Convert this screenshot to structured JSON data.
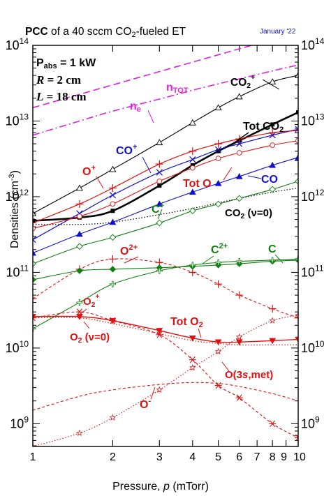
{
  "chart_data": {
    "type": "line",
    "title": "PCC of a 40 sccm CO2-fueled ET",
    "title_bold": "PCC",
    "title_rest": " of a 40 sccm CO",
    "title_sub": "2",
    "title_end": "-fueled ET",
    "date_note": "January '22",
    "xlabel": "Pressure, p (mTorr)",
    "xlabel_pre": "Pressure, ",
    "xlabel_var": "p",
    "xlabel_post": " (mTorr)",
    "ylabel": "Densities (cm-3)",
    "ylabel_main": "Densities (cm",
    "ylabel_sup": "-3",
    "ylabel_end": ")",
    "x_scale": "log",
    "y_scale": "log",
    "xlim": [
      1,
      10
    ],
    "ylim": [
      500000000.0,
      100000000000000.0
    ],
    "x_ticks": [
      1,
      2,
      3,
      4,
      5,
      6,
      7,
      8,
      9,
      10
    ],
    "x_tick_labels": [
      "1",
      "2",
      "3",
      "4",
      "5",
      "6",
      "7",
      "8",
      "9",
      "10"
    ],
    "y_ticks": [
      1000000000.0,
      10000000000.0,
      100000000000.0,
      1000000000000.0,
      10000000000000.0,
      100000000000000.0
    ],
    "y_tick_base": [
      "10",
      "10",
      "10",
      "10",
      "10",
      "10"
    ],
    "y_tick_exp": [
      "9",
      "10",
      "11",
      "12",
      "13",
      "14"
    ],
    "conditions": {
      "pabs_label": "P",
      "pabs_sub": "abs",
      "pabs_value": " = 1 kW",
      "r_label": "R",
      "r_value": " = 2 cm",
      "l_label": "L",
      "l_value": " = 18 cm"
    },
    "colors": {
      "black": "#000000",
      "magenta": "#e020e0",
      "blue": "#1010d0",
      "red": "#e01010",
      "green": "#108010"
    },
    "annotations": [
      {
        "id": "co2plus",
        "text": "CO",
        "sub": "2",
        "sup": "+",
        "color": "#000000"
      },
      {
        "id": "ntot",
        "text": "n",
        "sub": "TOT",
        "color": "#e020e0"
      },
      {
        "id": "ne",
        "text": "n",
        "sub": "e",
        "color": "#e020e0"
      },
      {
        "id": "totco2",
        "text": "Tot CO",
        "sub": "2",
        "color": "#000000"
      },
      {
        "id": "coplus",
        "text": "CO",
        "sup": "+",
        "color": "#1010d0"
      },
      {
        "id": "oplus",
        "text": "O",
        "sup": "+",
        "color": "#e01010"
      },
      {
        "id": "toto",
        "text": "Tot O",
        "color": "#e01010"
      },
      {
        "id": "co",
        "text": "CO",
        "color": "#1010d0"
      },
      {
        "id": "cplus",
        "text": "C",
        "sup": "+",
        "color": "#108010"
      },
      {
        "id": "co2v0",
        "text": "CO",
        "sub": "2",
        "post": " (ν=0)",
        "color": "#000000"
      },
      {
        "id": "o2plusplus",
        "text": "O",
        "sup": "2+",
        "color": "#e01010"
      },
      {
        "id": "c2plus",
        "text": "C",
        "sup": "2+",
        "color": "#108010"
      },
      {
        "id": "c",
        "text": "C",
        "color": "#108010"
      },
      {
        "id": "o2plus",
        "text": "O",
        "sub": "2",
        "sup": "+",
        "color": "#e01010"
      },
      {
        "id": "toto2",
        "text": "Tot O",
        "sub": "2",
        "color": "#e01010"
      },
      {
        "id": "o2v0",
        "text": "O",
        "sub": "2",
        "post": " (ν=0)",
        "color": "#e01010"
      },
      {
        "id": "o3smet",
        "text": "O(3",
        "ital": "s",
        "post": ",met)",
        "color": "#e01010"
      },
      {
        "id": "ominus",
        "text": "O",
        "sup": "-",
        "color": "#e01010"
      }
    ],
    "series": [
      {
        "name": "nTOT",
        "color": "#e020e0",
        "dash": "10,5",
        "marker": "none",
        "width": 1.6,
        "x": [
          1,
          2,
          3,
          4,
          5,
          6,
          8,
          10
        ],
        "y": [
          15000000000000.0,
          30000000000000.0,
          45000000000000.0,
          60000000000000.0,
          75000000000000.0,
          90000000000000.0,
          120000000000000.0,
          150000000000000.0
        ]
      },
      {
        "name": "ne",
        "color": "#e020e0",
        "dash": "10,4,2,4",
        "marker": "none",
        "width": 1.6,
        "x": [
          1,
          1.5,
          2,
          3,
          4,
          5,
          6,
          8,
          10
        ],
        "y": [
          6500000000000.0,
          10000000000000.0,
          13500000000000.0,
          19500000000000.0,
          25500000000000.0,
          31000000000000.0,
          36000000000000.0,
          46000000000000.0,
          55000000000000.0
        ]
      },
      {
        "name": "CO2+",
        "color": "#000000",
        "dash": "",
        "marker": "triangle-open",
        "width": 1.1,
        "x": [
          1,
          1.5,
          2,
          3,
          4,
          5,
          6,
          8,
          10
        ],
        "y": [
          600000000000.0,
          1300000000000.0,
          2300000000000.0,
          5200000000000.0,
          9500000000000.0,
          15000000000000.0,
          21000000000000.0,
          33000000000000.0,
          40000000000000.0
        ]
      },
      {
        "name": "Tot CO2",
        "color": "#000000",
        "dash": "",
        "marker": "square",
        "width": 2.6,
        "x": [
          1,
          1.5,
          2,
          3,
          4,
          5,
          6,
          8,
          10
        ],
        "y": [
          480000000000.0,
          530000000000.0,
          650000000000.0,
          1400000000000.0,
          2600000000000.0,
          4000000000000.0,
          5500000000000.0,
          9000000000000.0,
          13000000000000.0
        ]
      },
      {
        "name": "CO+",
        "color": "#1010d0",
        "dash": "",
        "marker": "x",
        "width": 1.2,
        "x": [
          1,
          1.5,
          2,
          3,
          4,
          5,
          6,
          8,
          10
        ],
        "y": [
          270000000000.0,
          600000000000.0,
          1050000000000.0,
          2100000000000.0,
          3100000000000.0,
          4200000000000.0,
          5000000000000.0,
          6500000000000.0,
          7800000000000.0
        ]
      },
      {
        "name": "O+",
        "color": "#e01010",
        "dash": "",
        "marker": "plus",
        "width": 1.2,
        "x": [
          1,
          1.5,
          2,
          3,
          4,
          5,
          6,
          8,
          10
        ],
        "y": [
          450000000000.0,
          800000000000.0,
          1300000000000.0,
          2700000000000.0,
          4000000000000.0,
          5000000000000.0,
          5800000000000.0,
          7000000000000.0,
          7500000000000.0
        ]
      },
      {
        "name": "Tot O",
        "color": "#e01010",
        "dash": "",
        "marker": "circle-open",
        "width": 1.1,
        "x": [
          1,
          1.5,
          2,
          3,
          4,
          5,
          6,
          8,
          10
        ],
        "y": [
          380000000000.0,
          550000000000.0,
          800000000000.0,
          1600000000000.0,
          2400000000000.0,
          3200000000000.0,
          3800000000000.0,
          4800000000000.0,
          5500000000000.0
        ]
      },
      {
        "name": "CO",
        "color": "#1010d0",
        "dash": "",
        "marker": "triangle",
        "width": 1.1,
        "x": [
          1,
          1.5,
          2,
          3,
          4,
          5,
          6,
          8,
          10
        ],
        "y": [
          180000000000.0,
          320000000000.0,
          460000000000.0,
          800000000000.0,
          1150000000000.0,
          1500000000000.0,
          1850000000000.0,
          2600000000000.0,
          3300000000000.0
        ]
      },
      {
        "name": "CO2 (v=0)",
        "color": "#000000",
        "dash": "1.5,2.5",
        "marker": "none",
        "width": 1.2,
        "x": [
          1,
          1.5,
          2,
          3,
          4,
          5,
          6,
          8,
          10
        ],
        "y": [
          430000000000.0,
          430000000000.0,
          460000000000.0,
          580000000000.0,
          700000000000.0,
          830000000000.0,
          950000000000.0,
          1150000000000.0,
          1300000000000.0
        ]
      },
      {
        "name": "C+",
        "color": "#108010",
        "dash": "",
        "marker": "diamond-open",
        "width": 1.1,
        "x": [
          1,
          1.5,
          2,
          3,
          4,
          5,
          6,
          8,
          10
        ],
        "y": [
          130000000000.0,
          220000000000.0,
          290000000000.0,
          450000000000.0,
          650000000000.0,
          800000000000.0,
          950000000000.0,
          1250000000000.0,
          1600000000000.0
        ]
      },
      {
        "name": "O2+ (doubly ionized O)",
        "color": "#e01010",
        "dash": "4,3",
        "marker": "plus",
        "width": 1.1,
        "x": [
          1,
          1.5,
          2,
          3,
          4,
          5,
          6,
          8,
          10
        ],
        "y": [
          45000000000.0,
          110000000000.0,
          150000000000.0,
          135000000000.0,
          100000000000.0,
          70000000000.0,
          50000000000.0,
          33000000000.0,
          25000000000.0
        ]
      },
      {
        "name": "C2+",
        "color": "#108010",
        "dash": "",
        "marker": "diamond",
        "width": 1.1,
        "x": [
          1,
          1.5,
          2,
          3,
          4,
          5,
          6,
          8,
          10
        ],
        "y": [
          80000000000.0,
          105000000000.0,
          110000000000.0,
          115000000000.0,
          120000000000.0,
          125000000000.0,
          130000000000.0,
          140000000000.0,
          145000000000.0
        ]
      },
      {
        "name": "C",
        "color": "#108010",
        "dash": "",
        "marker": "plus-open",
        "width": 1.1,
        "x": [
          1,
          1.5,
          2,
          3,
          4,
          5,
          6,
          8,
          10
        ],
        "y": [
          18000000000.0,
          40000000000.0,
          70000000000.0,
          105000000000.0,
          125000000000.0,
          135000000000.0,
          140000000000.0,
          145000000000.0,
          150000000000.0
        ]
      },
      {
        "name": "O2+",
        "color": "#e01010",
        "dash": "4,3",
        "marker": "asterisk",
        "width": 1.1,
        "x": [
          1,
          1.5,
          2,
          3,
          4,
          5,
          6,
          8,
          10
        ],
        "y": [
          25000000000.0,
          30000000000.0,
          23000000000.0,
          15000000000.0,
          7000000000.0,
          3200000000.0,
          2200000000.0,
          1000000000.0,
          650000000.0
        ]
      },
      {
        "name": "Tot O2",
        "color": "#e01010",
        "dash": "",
        "marker": "triangle-down",
        "width": 1.4,
        "x": [
          1,
          1.5,
          2,
          3,
          4,
          5,
          6,
          8,
          10
        ],
        "y": [
          26000000000.0,
          26000000000.0,
          23000000000.0,
          17000000000.0,
          13500000000.0,
          12000000000.0,
          12000000000.0,
          12500000000.0,
          13000000000.0
        ]
      },
      {
        "name": "O2 (v=0)",
        "color": "#e01010",
        "dash": "1.5,2.5",
        "marker": "none",
        "width": 1.2,
        "x": [
          1,
          1.5,
          2,
          3,
          4,
          5,
          6,
          8,
          10
        ],
        "y": [
          25000000000.0,
          25000000000.0,
          21000000000.0,
          15500000000.0,
          12500000000.0,
          11500000000.0,
          11000000000.0,
          11000000000.0,
          11000000000.0
        ]
      },
      {
        "name": "O(3s,met)",
        "color": "#e01010",
        "dash": "4,3",
        "marker": "none",
        "width": 1.1,
        "x": [
          1,
          1.5,
          2,
          3,
          4,
          5,
          6,
          8,
          10
        ],
        "y": [
          1500000000.0,
          2300000000.0,
          2800000000.0,
          3300000000.0,
          3500000000.0,
          3400000000.0,
          3100000000.0,
          2500000000.0,
          2000000000.0
        ]
      },
      {
        "name": "O-",
        "color": "#e01010",
        "dash": "1.5,2.5",
        "marker": "star",
        "width": 1.1,
        "x": [
          1,
          1.5,
          2,
          3,
          4,
          5,
          6,
          8,
          10
        ],
        "y": [
          500000000.0,
          750000000.0,
          1200000000.0,
          2800000000.0,
          5500000000.0,
          9000000000.0,
          14000000000.0,
          23000000000.0,
          27000000000.0
        ]
      }
    ]
  }
}
